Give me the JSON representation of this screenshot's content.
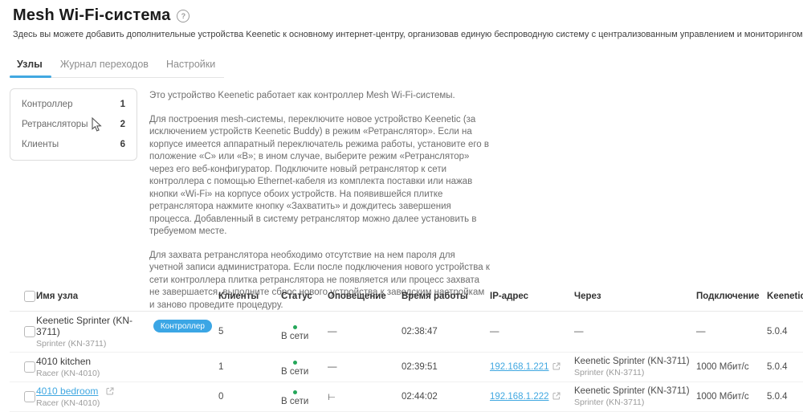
{
  "page": {
    "title": "Mesh Wi-Fi-система",
    "help_icon": "?",
    "subtitle": "Здесь вы можете добавить дополнительные устройства Keenetic к основному интернет-центру, организовав единую беспроводную систему с централизованным управлением и мониторингом."
  },
  "tabs": [
    {
      "label": "Узлы",
      "active": true
    },
    {
      "label": "Журнал переходов",
      "active": false
    },
    {
      "label": "Настройки",
      "active": false
    }
  ],
  "summary": {
    "items": [
      {
        "label": "Контроллер",
        "value": "1"
      },
      {
        "label": "Ретрансляторы",
        "value": "2"
      },
      {
        "label": "Клиенты",
        "value": "6"
      }
    ]
  },
  "description": {
    "p1": "Это устройство Keenetic работает как контроллер Mesh Wi-Fi-системы.",
    "p2": "Для построения mesh-системы, переключите новое устройство Keenetic (за исключением устройств Keenetic Buddy) в режим «Ретранслятор». Если на корпусе имеется аппаратный переключатель режима работы, установите его в положение «C» или «B»; в ином случае, выберите режим «Ретранслятор» через его веб-конфигуратор. Подключите новый ретранслятор к сети контроллера с помощью Ethernet-кабеля из комплекта поставки или нажав кнопки «Wi-Fi» на корпусе обоих устройств. На появившейся плитке ретранслятора нажмите кнопку «Захватить» и дождитесь завершения процесса. Добавленный в систему ретранслятор можно далее установить в требуемом месте.",
    "p3": "Для захвата ретранслятора необходимо отсутствие на нем пароля для учетной записи администратора. Если после подключения нового устройства к сети контроллера плитка ретранслятора не появляется или процесс захвата не завершается, выполните сброс нового устройства к заводским настройкам и заново проведите процедуру."
  },
  "table": {
    "headers": [
      "Имя узла",
      "Клиенты",
      "Статус",
      "Оповещение",
      "Время работы",
      "IP-адрес",
      "Через",
      "Подключение",
      "KeeneticOS"
    ],
    "rows": [
      {
        "name": "Keenetic Sprinter (KN-3711)",
        "name_is_link": false,
        "badge": "Контроллер",
        "model": "Sprinter (KN-3711)",
        "clients": "5",
        "status": "В сети",
        "alert": "—",
        "uptime": "02:38:47",
        "ip": "—",
        "ip_is_link": false,
        "via": null,
        "connection": "—",
        "os": "5.0.4"
      },
      {
        "name": "4010 kitchen",
        "name_is_link": false,
        "badge": null,
        "model": "Racer (KN-4010)",
        "clients": "1",
        "status": "В сети",
        "alert": "—",
        "uptime": "02:39:51",
        "ip": "192.168.1.221",
        "ip_is_link": true,
        "via": {
          "name": "Keenetic Sprinter (KN-3711)",
          "model": "Sprinter (KN-3711)"
        },
        "connection": "1000 Мбит/с",
        "os": "5.0.4"
      },
      {
        "name": "4010 bedroom",
        "name_is_link": true,
        "badge": null,
        "model": "Racer (KN-4010)",
        "clients": "0",
        "status": "В сети",
        "alert": "⊢",
        "uptime": "02:44:02",
        "ip": "192.168.1.222",
        "ip_is_link": true,
        "via": {
          "name": "Keenetic Sprinter (KN-3711)",
          "model": "Sprinter (KN-3711)"
        },
        "connection": "1000 Мбит/с",
        "os": "5.0.4"
      }
    ]
  },
  "colors": {
    "accent": "#3ba6e5",
    "online": "#25a75a"
  }
}
